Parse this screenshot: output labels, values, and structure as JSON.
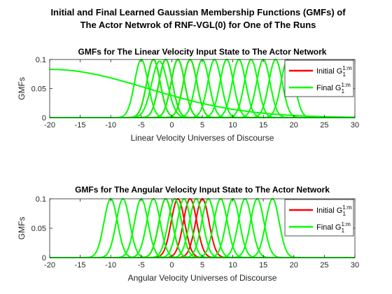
{
  "figure_title_line1": "Initial and Final Learned Gaussian Membership Functions (GMFs) of",
  "figure_title_line2": "The Actor Netwrok of RNF-VGL(0) for One of The Runs",
  "chart_data": [
    {
      "type": "line",
      "title": "GMFs for The Linear Velocity Input State to The Actor Network",
      "xlabel": "Linear Velocity Universes of Discourse",
      "ylabel": "GMFs",
      "xlim": [
        -20,
        30
      ],
      "ylim": [
        0,
        0.1
      ],
      "xticks": [
        "-20",
        "-15",
        "-10",
        "-5",
        "0",
        "5",
        "10",
        "15",
        "20",
        "25",
        "30"
      ],
      "yticks": [
        "0",
        "0.05",
        "0.1"
      ],
      "legend_position": "top-right",
      "legend": [
        {
          "label": "Initial G",
          "sup": "1:m",
          "sub": "1",
          "color": "#ff0000"
        },
        {
          "label": "Final G",
          "sup": "1:m",
          "sub": "1",
          "color": "#00ff00"
        }
      ],
      "series": [
        {
          "name": "Initial G1:m",
          "color": "#ff0000",
          "peak": 0.1,
          "sigma": 1.1,
          "centers": [
            -3,
            -1,
            1,
            3
          ]
        },
        {
          "name": "Final G1:m",
          "color": "#00ff00",
          "peak": 0.1,
          "sigma": 1.1,
          "centers": [
            -5,
            -3,
            -1,
            1,
            3,
            5,
            7,
            9,
            11,
            13,
            15,
            17,
            19
          ],
          "extra": [
            {
              "center": -2,
              "sigma": 1.3,
              "peak": 0.097
            },
            {
              "center": -20,
              "sigma": 16,
              "peak": 0.083
            }
          ]
        }
      ]
    },
    {
      "type": "line",
      "title": "GMFs for The Angular Velocity Input State to The Actor Network",
      "xlabel": "Angular Velocity Universes of Discourse",
      "ylabel": "GMFs",
      "xlim": [
        -20,
        30
      ],
      "ylim": [
        0,
        0.1
      ],
      "xticks": [
        "-20",
        "-15",
        "-10",
        "-5",
        "0",
        "5",
        "10",
        "15",
        "20",
        "25",
        "30"
      ],
      "yticks": [
        "0",
        "0.05",
        "0.1"
      ],
      "legend_position": "top-right",
      "legend": [
        {
          "label": "Initial G",
          "sup": "1:m",
          "sub": "1",
          "color": "#ff0000"
        },
        {
          "label": "Final G",
          "sup": "1:m",
          "sub": "1",
          "color": "#00ff00"
        }
      ],
      "series": [
        {
          "name": "Initial G1:m",
          "color": "#ff0000",
          "peak": 0.1,
          "sigma": 1.1,
          "centers": [
            -1,
            1,
            3,
            5
          ]
        },
        {
          "name": "Final G1:m",
          "color": "#00ff00",
          "peak": 0.1,
          "sigma": 1.1,
          "centers": [
            -10,
            -8,
            -5,
            -3,
            -1,
            0.5,
            2,
            4,
            6,
            8,
            10,
            12,
            14,
            16.5
          ],
          "extra": []
        }
      ]
    }
  ]
}
